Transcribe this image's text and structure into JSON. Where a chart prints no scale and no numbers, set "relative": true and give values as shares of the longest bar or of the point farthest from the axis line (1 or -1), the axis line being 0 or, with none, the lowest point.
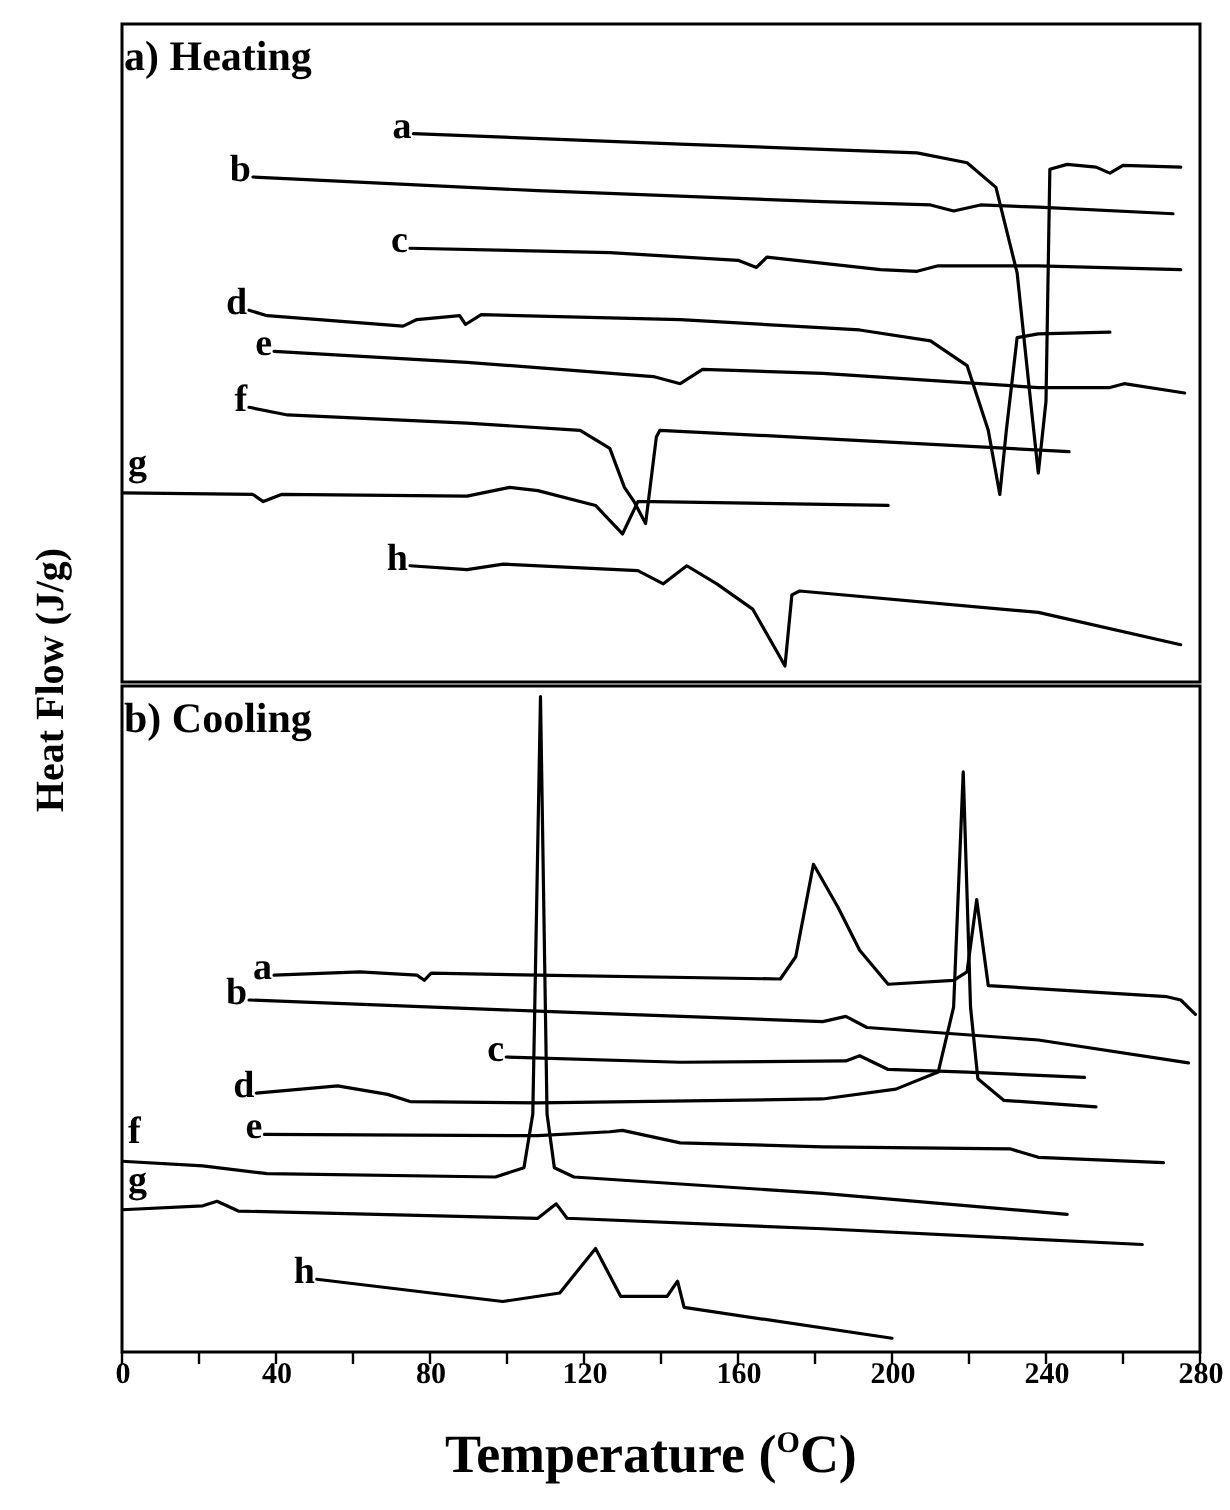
{
  "chart_data": [
    {
      "type": "line",
      "title": "a) Heating",
      "ylabel": "Heat Flow (J/g)",
      "relative": true,
      "xlim": [
        0,
        280
      ],
      "tick_labels": false,
      "series": [
        {
          "name": "a",
          "color": "#000000",
          "x": [
            75.7,
            145,
            206.5,
            219.5,
            227,
            232.5,
            236,
            238,
            240,
            241,
            245.5,
            253,
            256.6,
            260,
            275
          ],
          "values": [
            1.0,
            0.981,
            0.965,
            0.947,
            0.902,
            0.746,
            0.512,
            0.381,
            0.512,
            0.935,
            0.944,
            0.939,
            0.928,
            0.942,
            0.939
          ]
        },
        {
          "name": "b",
          "color": "#000000",
          "x": [
            34,
            108,
            182,
            210,
            216,
            223,
            238,
            273
          ],
          "values": [
            0.921,
            0.896,
            0.876,
            0.87,
            0.859,
            0.87,
            0.866,
            0.854
          ]
        },
        {
          "name": "c",
          "color": "#000000",
          "x": [
            74.8,
            126.7,
            160,
            164.8,
            167.5,
            197,
            206.5,
            212,
            238,
            275
          ],
          "values": [
            0.791,
            0.783,
            0.769,
            0.756,
            0.775,
            0.752,
            0.749,
            0.759,
            0.759,
            0.752
          ]
        },
        {
          "name": "d",
          "color": "#000000",
          "x": [
            33,
            37.7,
            73,
            76.6,
            87.7,
            89.2,
            93.3,
            145,
            191.6,
            210,
            219.5,
            225,
            228,
            229.7,
            232.5,
            238,
            256.6
          ],
          "values": [
            0.678,
            0.668,
            0.649,
            0.661,
            0.668,
            0.652,
            0.67,
            0.661,
            0.642,
            0.622,
            0.577,
            0.459,
            0.342,
            0.459,
            0.628,
            0.635,
            0.638
          ]
        },
        {
          "name": "e",
          "color": "#000000",
          "x": [
            39.5,
            89.6,
            138,
            145,
            150.8,
            182,
            238,
            256.6,
            260.3,
            276
          ],
          "values": [
            0.603,
            0.583,
            0.557,
            0.544,
            0.57,
            0.563,
            0.537,
            0.537,
            0.544,
            0.527
          ]
        },
        {
          "name": "f",
          "color": "#000000",
          "x": [
            33,
            43,
            89.6,
            119,
            126.7,
            130.5,
            133,
            136,
            138.8,
            139.7,
            182,
            246
          ],
          "values": [
            0.501,
            0.487,
            0.472,
            0.459,
            0.426,
            0.355,
            0.329,
            0.289,
            0.447,
            0.459,
            0.444,
            0.42
          ]
        },
        {
          "name": "g",
          "color": "#000000",
          "x": [
            0,
            34,
            36.7,
            41.4,
            89.6,
            100.7,
            108,
            123,
            130,
            134,
            137.8,
            199
          ],
          "values": [
            0.345,
            0.342,
            0.329,
            0.342,
            0.339,
            0.355,
            0.349,
            0.322,
            0.27,
            0.329,
            0.329,
            0.322
          ]
        },
        {
          "name": "h",
          "color": "#000000",
          "x": [
            74.8,
            89.6,
            99,
            134,
            140.6,
            146.7,
            154.5,
            163.8,
            171.2,
            172.2,
            174,
            176,
            238,
            275
          ],
          "values": [
            0.212,
            0.205,
            0.215,
            0.203,
            0.179,
            0.212,
            0.179,
            0.133,
            0.042,
            0.029,
            0.159,
            0.166,
            0.127,
            0.068
          ]
        }
      ]
    },
    {
      "type": "line",
      "title": "b) Cooling",
      "xlabel": "Temperature ($^{O}$C)",
      "relative": true,
      "xlim": [
        0,
        280
      ],
      "tick_labels": "x",
      "xticks": [
        0,
        {
          "value": 20,
          "label": null
        },
        40,
        {
          "value": 60,
          "label": null
        },
        80,
        {
          "value": 100,
          "label": null
        },
        120,
        {
          "value": 140,
          "label": null
        },
        160,
        {
          "value": 180,
          "label": null
        },
        200,
        {
          "value": 220,
          "label": null
        },
        240,
        {
          "value": 260,
          "label": null
        },
        280
      ],
      "series": [
        {
          "name": "a",
          "color": "#000000",
          "x": [
            39.5,
            61.8,
            76.6,
            78.5,
            80.3,
            108,
            171,
            175,
            179.6,
            186,
            191.6,
            199,
            216,
            219.5,
            222,
            225,
            271.4,
            275,
            278.8
          ],
          "values": [
            0.575,
            0.58,
            0.575,
            0.567,
            0.578,
            0.575,
            0.569,
            0.603,
            0.744,
            0.678,
            0.613,
            0.561,
            0.567,
            0.58,
            0.69,
            0.559,
            0.542,
            0.537,
            0.515
          ]
        },
        {
          "name": "b",
          "color": "#000000",
          "x": [
            33,
            108,
            182,
            188,
            193.5,
            238,
            277
          ],
          "values": [
            0.537,
            0.52,
            0.504,
            0.512,
            0.495,
            0.476,
            0.441
          ]
        },
        {
          "name": "c",
          "color": "#000000",
          "x": [
            99.8,
            145,
            188,
            191.6,
            199,
            219.5,
            250
          ],
          "values": [
            0.45,
            0.442,
            0.444,
            0.452,
            0.431,
            0.427,
            0.419
          ]
        },
        {
          "name": "d",
          "color": "#000000",
          "x": [
            34.9,
            56,
            69,
            74.8,
            108,
            182,
            201,
            212,
            216,
            218.5,
            220.4,
            222.3,
            229,
            253
          ],
          "values": [
            0.395,
            0.406,
            0.393,
            0.382,
            0.38,
            0.386,
            0.401,
            0.427,
            0.526,
            0.885,
            0.526,
            0.417,
            0.384,
            0.374
          ]
        },
        {
          "name": "e",
          "color": "#000000",
          "x": [
            37,
            108,
            126.7,
            130,
            145,
            182,
            230.6,
            238,
            270.5
          ],
          "values": [
            0.332,
            0.33,
            0.336,
            0.338,
            0.319,
            0.313,
            0.31,
            0.297,
            0.289
          ]
        },
        {
          "name": "f",
          "color": "#000000",
          "x": [
            0,
            21,
            37.7,
            97,
            104.4,
            106.7,
            108.7,
            110.4,
            112.3,
            117.4,
            182,
            245.5
          ],
          "values": [
            0.291,
            0.284,
            0.272,
            0.267,
            0.281,
            0.363,
            1.0,
            0.363,
            0.281,
            0.267,
            0.242,
            0.21
          ]
        },
        {
          "name": "g",
          "color": "#000000",
          "x": [
            0,
            21,
            24.7,
            30.2,
            108,
            112.8,
            115.6,
            182,
            265
          ],
          "values": [
            0.217,
            0.223,
            0.23,
            0.215,
            0.204,
            0.226,
            0.204,
            0.188,
            0.164
          ]
        },
        {
          "name": "h",
          "color": "#000000",
          "x": [
            50.6,
            80.3,
            98.9,
            113.7,
            123,
            129.5,
            141.6,
            144.3,
            146,
            200
          ],
          "values": [
            0.111,
            0.09,
            0.077,
            0.09,
            0.158,
            0.085,
            0.085,
            0.108,
            0.068,
            0.021
          ]
        }
      ]
    }
  ]
}
